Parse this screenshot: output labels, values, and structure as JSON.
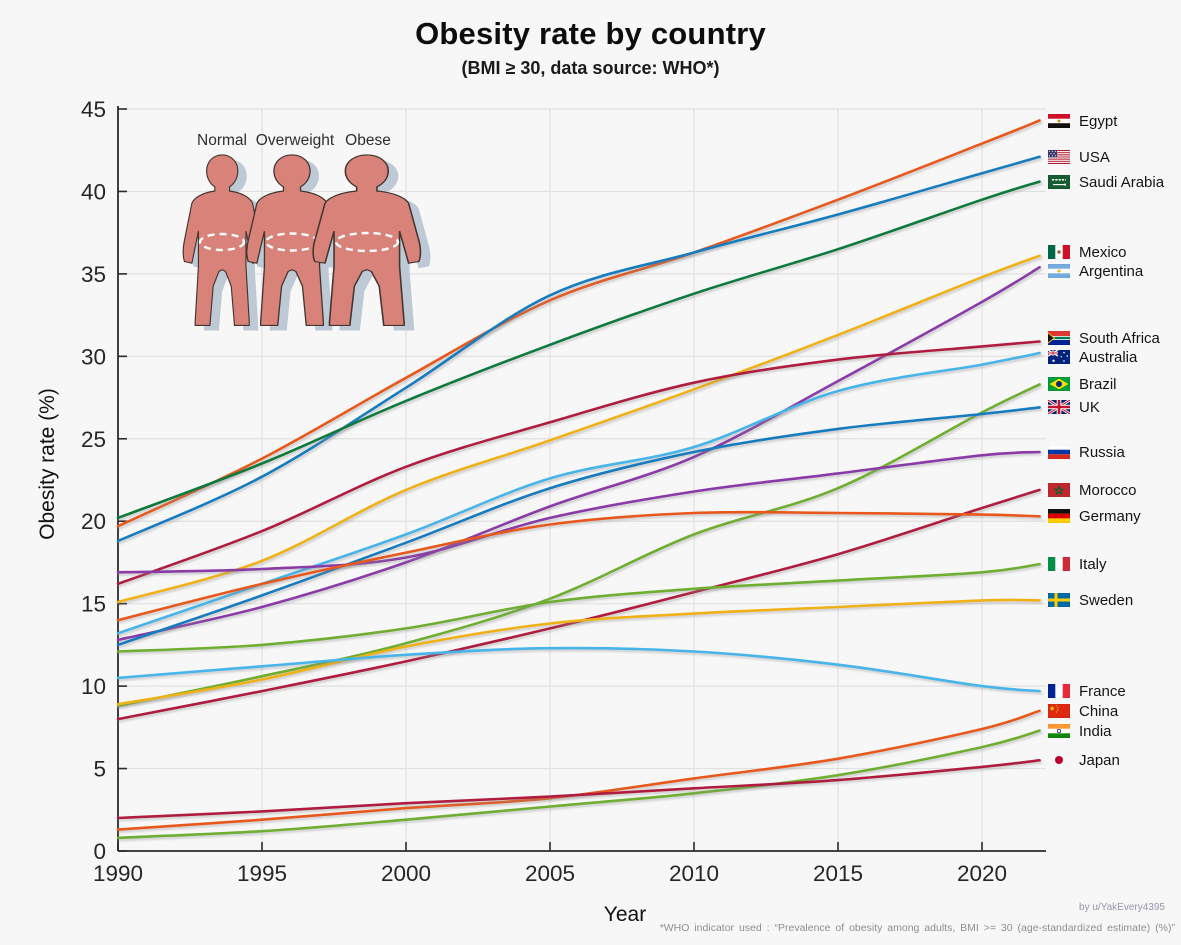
{
  "title": "Obesity rate by country",
  "subtitle": "(BMI ≥ 30, data source: WHO*)",
  "credit": "by u/YakEvery4395",
  "footnote": "*WHO indicator used : “Prevalence of obesity among adults, BMI >= 30 (age-standardized estimate) (%)”",
  "inset": {
    "labels": [
      "Normal",
      "Overweight",
      "Obese"
    ]
  },
  "colors": {
    "background": "#f7f7f7",
    "grid": "#e0e0e0",
    "axis": "#2b2b2b",
    "tick_text": "#262626",
    "body_fill": "#d9827a",
    "body_shadow": "#bdc9d4",
    "body_outline": "#433630",
    "palette": {
      "orange": "#e8591a",
      "blue": "#187bc0",
      "dark_green": "#0e7a3e",
      "gold": "#efb118",
      "purple": "#8a3ba8",
      "crimson": "#b01e40",
      "sky": "#47b4ea",
      "green": "#6fae30"
    }
  },
  "chart_data": {
    "type": "line",
    "title": "Obesity rate by country",
    "subtitle": "(BMI ≥ 30, data source: WHO*)",
    "xlabel": "Year",
    "ylabel": "Obesity rate (%)",
    "x": [
      1990,
      1995,
      2000,
      2005,
      2010,
      2015,
      2020,
      2022
    ],
    "xlim": [
      1990,
      2022
    ],
    "ylim": [
      0,
      45
    ],
    "xticks": [
      "1990",
      "1995",
      "2000",
      "2005",
      "2010",
      "2015",
      "2020"
    ],
    "xtick_years": [
      1990,
      1995,
      2000,
      2005,
      2010,
      2015,
      2020
    ],
    "yticks": [
      0,
      5,
      10,
      15,
      20,
      25,
      30,
      35,
      40,
      45
    ],
    "grid": true,
    "legend_position": "right",
    "series": [
      {
        "name": "Egypt",
        "flag": "eg",
        "color": "orange",
        "values": [
          19.7,
          23.8,
          28.7,
          33.4,
          36.3,
          39.5,
          42.9,
          44.3
        ]
      },
      {
        "name": "USA",
        "flag": "us",
        "color": "blue",
        "values": [
          18.8,
          22.7,
          28.1,
          33.7,
          36.3,
          38.6,
          41.1,
          42.1
        ]
      },
      {
        "name": "Saudi Arabia",
        "flag": "sa",
        "color": "dark_green",
        "values": [
          20.2,
          23.5,
          27.3,
          30.7,
          33.8,
          36.5,
          39.5,
          40.6
        ]
      },
      {
        "name": "Mexico",
        "flag": "mx",
        "color": "gold",
        "values": [
          15.1,
          17.6,
          21.9,
          24.9,
          28.0,
          31.3,
          34.8,
          36.1
        ]
      },
      {
        "name": "Argentina",
        "flag": "ar",
        "color": "purple",
        "values": [
          12.8,
          14.8,
          17.5,
          20.9,
          23.9,
          28.5,
          33.3,
          35.4
        ]
      },
      {
        "name": "South Africa",
        "flag": "za",
        "color": "crimson",
        "values": [
          16.2,
          19.4,
          23.3,
          26.0,
          28.4,
          29.8,
          30.6,
          30.9
        ]
      },
      {
        "name": "Australia",
        "flag": "au",
        "color": "sky",
        "values": [
          13.2,
          16.2,
          19.2,
          22.6,
          24.5,
          27.9,
          29.5,
          30.2
        ]
      },
      {
        "name": "Brazil",
        "flag": "br",
        "color": "green",
        "values": [
          8.8,
          10.6,
          12.6,
          15.3,
          19.2,
          22.0,
          26.6,
          28.3
        ]
      },
      {
        "name": "UK",
        "flag": "gb",
        "color": "blue",
        "values": [
          12.5,
          15.5,
          18.7,
          22.0,
          24.2,
          25.6,
          26.5,
          26.9
        ]
      },
      {
        "name": "Russia",
        "flag": "ru",
        "color": "purple",
        "values": [
          16.9,
          17.1,
          17.8,
          20.2,
          21.8,
          22.9,
          24.0,
          24.2
        ]
      },
      {
        "name": "Morocco",
        "flag": "ma",
        "color": "crimson",
        "values": [
          8.0,
          9.7,
          11.5,
          13.5,
          15.7,
          18.0,
          20.8,
          21.9
        ]
      },
      {
        "name": "Germany",
        "flag": "de",
        "color": "orange",
        "values": [
          14.0,
          16.2,
          18.1,
          19.8,
          20.5,
          20.5,
          20.4,
          20.3
        ]
      },
      {
        "name": "Italy",
        "flag": "it",
        "color": "green",
        "values": [
          12.1,
          12.5,
          13.5,
          15.1,
          15.9,
          16.4,
          16.9,
          17.4
        ]
      },
      {
        "name": "Sweden",
        "flag": "se",
        "color": "gold",
        "values": [
          8.9,
          10.4,
          12.4,
          13.8,
          14.4,
          14.8,
          15.2,
          15.2
        ]
      },
      {
        "name": "France",
        "flag": "fr",
        "color": "sky",
        "values": [
          10.5,
          11.2,
          11.9,
          12.3,
          12.1,
          11.3,
          10.0,
          9.7
        ]
      },
      {
        "name": "China",
        "flag": "cn",
        "color": "orange",
        "values": [
          1.3,
          1.9,
          2.6,
          3.2,
          4.4,
          5.6,
          7.4,
          8.5
        ]
      },
      {
        "name": "India",
        "flag": "in",
        "color": "green",
        "values": [
          0.8,
          1.2,
          1.9,
          2.7,
          3.5,
          4.6,
          6.3,
          7.3
        ]
      },
      {
        "name": "Japan",
        "flag": "jp",
        "color": "crimson",
        "values": [
          2.0,
          2.4,
          2.9,
          3.3,
          3.8,
          4.3,
          5.1,
          5.5
        ]
      }
    ]
  }
}
